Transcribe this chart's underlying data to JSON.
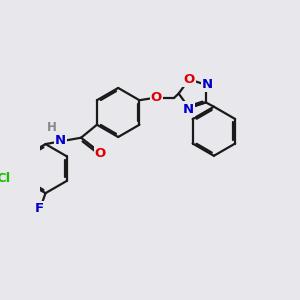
{
  "bg_color": "#e8e8ec",
  "bond_color": "#1a1a1a",
  "bond_width": 1.6,
  "atom_colors": {
    "O": "#dd0000",
    "N": "#0000cc",
    "Cl": "#22bb00",
    "F": "#0000cc",
    "H": "#888888",
    "C": "#1a1a1a"
  },
  "font_size": 9.5
}
